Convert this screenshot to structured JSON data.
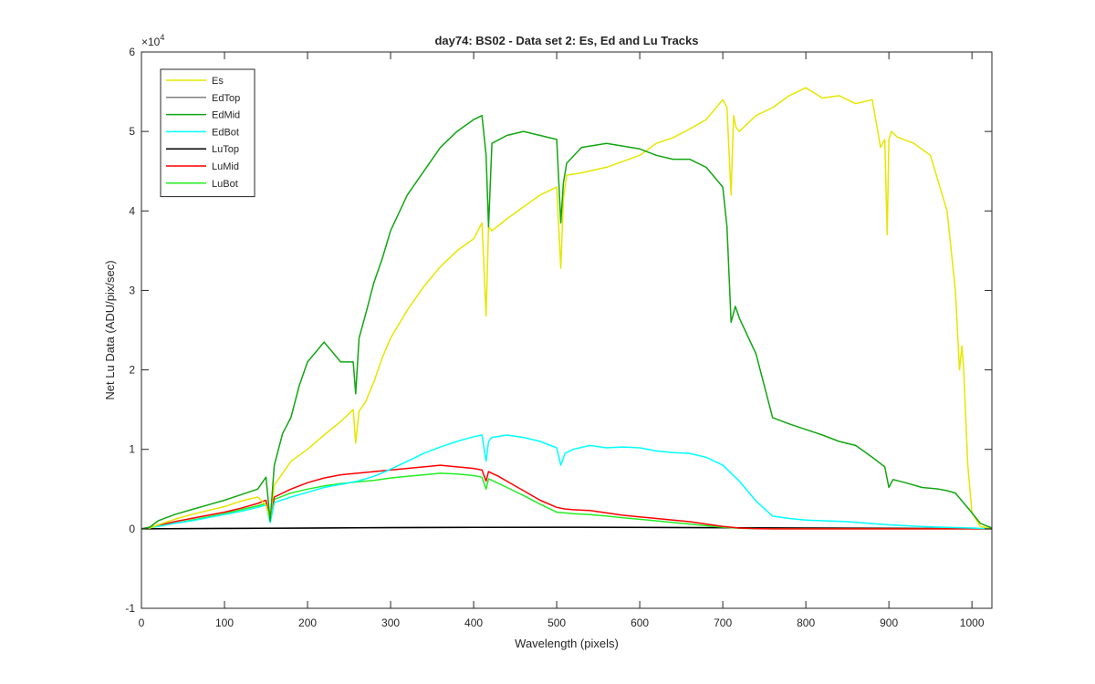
{
  "chart_data": {
    "type": "line",
    "title": "day74: BS02 - Data set 2: Es, Ed and Lu Tracks",
    "xlabel": "Wavelength (pixels)",
    "ylabel": "Net Lu Data (ADU/pix/sec)",
    "y_multiplier_label": "×10",
    "y_multiplier_exponent": "4",
    "xlim": [
      0,
      1024
    ],
    "ylim": [
      -10000,
      60000
    ],
    "x_ticks": [
      "0",
      "100",
      "200",
      "300",
      "400",
      "500",
      "600",
      "700",
      "800",
      "900",
      "1000"
    ],
    "y_ticks": [
      "-1",
      "0",
      "1",
      "2",
      "3",
      "4",
      "5",
      "6"
    ],
    "grid": false,
    "legend_position": "top-left",
    "series": [
      {
        "name": "Es",
        "color": "#e6e600",
        "x": [
          0,
          10,
          20,
          40,
          60,
          80,
          100,
          120,
          140,
          150,
          155,
          160,
          170,
          180,
          200,
          220,
          240,
          255,
          258,
          262,
          270,
          280,
          290,
          300,
          320,
          340,
          360,
          380,
          400,
          410,
          415,
          418,
          422,
          440,
          460,
          480,
          500,
          505,
          508,
          512,
          530,
          560,
          600,
          620,
          640,
          660,
          680,
          700,
          705,
          710,
          713,
          716,
          720,
          740,
          760,
          780,
          800,
          820,
          840,
          860,
          880,
          890,
          895,
          898,
          900,
          903,
          910,
          930,
          950,
          970,
          980,
          985,
          988,
          990,
          995,
          1000,
          1010,
          1024
        ],
        "y": [
          0,
          100,
          500,
          1200,
          1800,
          2300,
          2800,
          3500,
          4000,
          3000,
          1200,
          5500,
          7000,
          8500,
          10000,
          11800,
          13500,
          15000,
          10800,
          14800,
          16000,
          18500,
          21500,
          24000,
          27500,
          30500,
          33000,
          35000,
          36500,
          38500,
          26800,
          38000,
          37500,
          39000,
          40500,
          42000,
          43000,
          32800,
          41500,
          44500,
          44800,
          45500,
          47000,
          48500,
          49200,
          50300,
          51500,
          54000,
          53000,
          42000,
          52000,
          50500,
          50000,
          52000,
          53000,
          54500,
          55500,
          54200,
          54500,
          53500,
          54000,
          48000,
          49000,
          37000,
          49000,
          50000,
          49300,
          48500,
          47000,
          40000,
          30000,
          20000,
          23000,
          20000,
          8000,
          2000,
          300,
          0
        ]
      },
      {
        "name": "EdTop",
        "color": "#808080",
        "x": [
          0,
          100,
          200,
          300,
          400,
          500,
          600,
          700,
          800,
          900,
          1000,
          1024
        ],
        "y": [
          0,
          40,
          90,
          140,
          180,
          190,
          170,
          130,
          90,
          50,
          20,
          0
        ]
      },
      {
        "name": "EdMid",
        "color": "#11a611",
        "x": [
          0,
          10,
          20,
          40,
          60,
          80,
          100,
          120,
          140,
          150,
          155,
          160,
          170,
          180,
          190,
          200,
          220,
          240,
          255,
          258,
          262,
          270,
          280,
          290,
          300,
          320,
          340,
          360,
          380,
          400,
          410,
          415,
          418,
          422,
          440,
          460,
          480,
          500,
          505,
          508,
          512,
          530,
          560,
          600,
          620,
          640,
          660,
          680,
          700,
          705,
          710,
          715,
          720,
          740,
          760,
          780,
          800,
          820,
          840,
          860,
          880,
          895,
          900,
          905,
          920,
          940,
          960,
          970,
          980,
          1000,
          1010,
          1024
        ],
        "y": [
          0,
          200,
          1000,
          1800,
          2400,
          3000,
          3600,
          4300,
          5000,
          6500,
          1000,
          8000,
          12000,
          14000,
          18000,
          21000,
          23500,
          21000,
          21000,
          17000,
          24000,
          27000,
          31000,
          34000,
          37500,
          42000,
          45000,
          48000,
          50000,
          51500,
          52000,
          47000,
          38000,
          48500,
          49500,
          50000,
          49500,
          49000,
          38500,
          43500,
          46000,
          48000,
          48500,
          47800,
          47000,
          46500,
          46500,
          45500,
          43000,
          38000,
          26000,
          28000,
          26500,
          22000,
          14000,
          13200,
          12500,
          11800,
          11000,
          10500,
          9000,
          7800,
          5200,
          6200,
          5800,
          5200,
          5000,
          4800,
          4500,
          2000,
          700,
          100
        ]
      },
      {
        "name": "EdBot",
        "color": "#00ffff",
        "x": [
          0,
          20,
          40,
          60,
          80,
          100,
          120,
          140,
          150,
          155,
          160,
          180,
          200,
          220,
          240,
          260,
          280,
          300,
          320,
          340,
          360,
          380,
          400,
          410,
          415,
          418,
          422,
          440,
          460,
          480,
          500,
          505,
          510,
          520,
          540,
          560,
          580,
          600,
          620,
          640,
          660,
          680,
          700,
          720,
          740,
          760,
          780,
          800,
          850,
          900,
          950,
          1000,
          1024
        ],
        "y": [
          0,
          300,
          700,
          1000,
          1400,
          1800,
          2200,
          2700,
          3000,
          800,
          3300,
          4000,
          4600,
          5200,
          5600,
          6000,
          6600,
          7500,
          8500,
          9500,
          10300,
          11000,
          11600,
          11800,
          8500,
          11000,
          11500,
          11800,
          11500,
          11000,
          10200,
          8000,
          9500,
          10000,
          10500,
          10200,
          10300,
          10200,
          9800,
          9600,
          9500,
          9000,
          8000,
          6000,
          3500,
          1600,
          1300,
          1100,
          900,
          500,
          250,
          100,
          0
        ]
      },
      {
        "name": "LuTop",
        "color": "#000000",
        "x": [
          0,
          100,
          200,
          300,
          400,
          500,
          600,
          700,
          800,
          900,
          1000,
          1024
        ],
        "y": [
          0,
          50,
          100,
          150,
          190,
          200,
          180,
          140,
          100,
          60,
          20,
          0
        ]
      },
      {
        "name": "LuMid",
        "color": "#ff0000",
        "x": [
          0,
          20,
          40,
          60,
          80,
          100,
          120,
          140,
          150,
          155,
          160,
          180,
          200,
          220,
          240,
          260,
          280,
          300,
          320,
          340,
          360,
          380,
          400,
          410,
          415,
          418,
          422,
          430,
          440,
          460,
          480,
          500,
          510,
          520,
          540,
          560,
          580,
          600,
          620,
          640,
          660,
          680,
          700,
          720,
          740,
          760,
          780,
          800,
          850,
          900,
          950,
          1000,
          1024
        ],
        "y": [
          0,
          400,
          900,
          1300,
          1700,
          2100,
          2600,
          3200,
          3600,
          1000,
          4000,
          5000,
          5800,
          6400,
          6800,
          7000,
          7200,
          7400,
          7600,
          7800,
          8000,
          7800,
          7600,
          7400,
          6000,
          7200,
          7000,
          6600,
          6000,
          4800,
          3600,
          2700,
          2500,
          2400,
          2300,
          2000,
          1700,
          1500,
          1300,
          1100,
          900,
          600,
          300,
          100,
          30,
          0,
          0,
          0,
          0,
          0,
          0,
          0,
          0
        ]
      },
      {
        "name": "LuBot",
        "color": "#22ee22",
        "x": [
          0,
          20,
          40,
          60,
          80,
          100,
          120,
          140,
          150,
          155,
          160,
          180,
          200,
          220,
          240,
          260,
          280,
          300,
          320,
          340,
          360,
          380,
          400,
          410,
          415,
          418,
          422,
          430,
          440,
          460,
          480,
          500,
          510,
          520,
          540,
          560,
          580,
          600,
          620,
          640,
          660,
          680,
          700,
          720,
          740,
          760,
          780,
          800,
          850,
          900,
          950,
          1000,
          1024
        ],
        "y": [
          0,
          300,
          700,
          1100,
          1500,
          1900,
          2400,
          2900,
          3200,
          800,
          3700,
          4500,
          5000,
          5400,
          5700,
          5900,
          6100,
          6400,
          6600,
          6800,
          7000,
          6900,
          6700,
          6500,
          5000,
          6300,
          6100,
          5700,
          5200,
          4200,
          3100,
          2100,
          2000,
          1900,
          1800,
          1600,
          1400,
          1200,
          1000,
          800,
          600,
          400,
          200,
          80,
          20,
          0,
          0,
          0,
          0,
          0,
          0,
          0,
          0
        ]
      }
    ]
  }
}
